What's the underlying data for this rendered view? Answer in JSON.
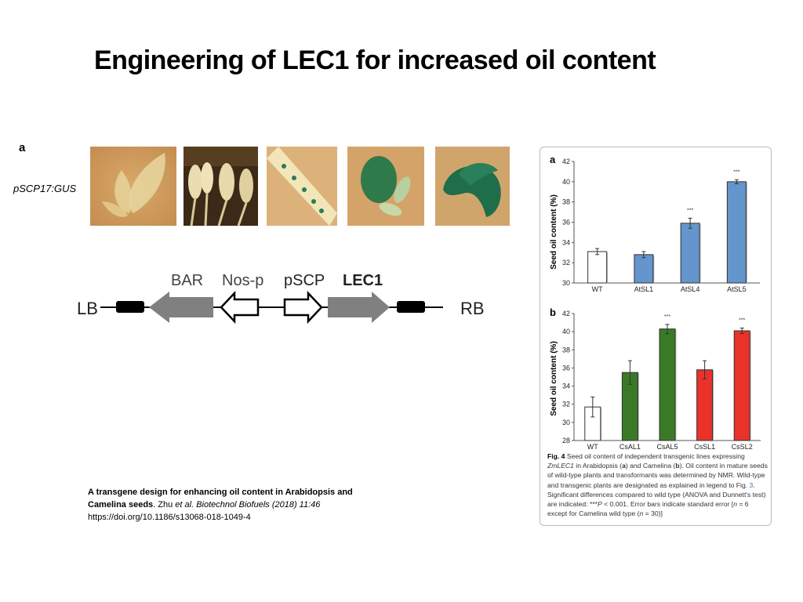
{
  "slide": {
    "title": "Engineering of LEC1 for increased oil content"
  },
  "left_figure": {
    "panel_label": "a",
    "row_label": "pSCP17:GUS",
    "photos": [
      "leaf",
      "flowers",
      "silique",
      "seedling",
      "embryo"
    ],
    "construct": {
      "left_border": "LB",
      "right_border": "RB",
      "elements": [
        "BAR",
        "Nos-p",
        "pSCP",
        "LEC1"
      ]
    }
  },
  "citation": {
    "title_bold": "A transgene design for enhancing oil content in Arabidopsis and Camelina seeds",
    "authors": "Zhu ",
    "et_al": "et al.",
    "journal": "Biotechnol Biofuels (2018) 11:46",
    "doi": "https://doi.org/10.1186/s13068-018-1049-4"
  },
  "chart_data": [
    {
      "type": "bar",
      "panel": "a",
      "ylabel": "Seed oil content (%)",
      "ylim": [
        30,
        42
      ],
      "yticks": [
        30,
        32,
        34,
        36,
        38,
        40,
        42
      ],
      "categories": [
        "WT",
        "AtSL1",
        "AtSL4",
        "AtSL5"
      ],
      "values": [
        33.1,
        32.8,
        35.9,
        40.0
      ],
      "errors": [
        0.3,
        0.3,
        0.5,
        0.2
      ],
      "colors": [
        "#ffffff",
        "#6495cc",
        "#6495cc",
        "#6495cc"
      ],
      "significance": [
        "",
        "",
        "***",
        "***"
      ]
    },
    {
      "type": "bar",
      "panel": "b",
      "ylabel": "Seed oil content (%)",
      "ylim": [
        28,
        42
      ],
      "yticks": [
        28,
        30,
        32,
        34,
        36,
        38,
        40,
        42
      ],
      "categories": [
        "WT",
        "CsAL1",
        "CsAL5",
        "CsSL1",
        "CsSL2"
      ],
      "values": [
        31.7,
        35.5,
        40.3,
        35.8,
        40.1
      ],
      "errors": [
        1.1,
        1.3,
        0.5,
        1.0,
        0.3
      ],
      "colors": [
        "#ffffff",
        "#3a7a26",
        "#3a7a26",
        "#e8322a",
        "#e8322a"
      ],
      "significance": [
        "",
        "",
        "***",
        "",
        "***"
      ]
    }
  ],
  "caption": {
    "fig": "Fig. 4",
    "t1": " Seed oil content of independent transgenic lines expressing ",
    "gene": "ZmLEC1",
    "t2": " in Arabidopsis (",
    "a": "a",
    "t3": ") and Camelina (",
    "b": "b",
    "t4": "). Oil content in mature seeds of wild-type plants and transformants was determined by NMR. Wild-type and transgenic plants are designated as explained in legend to Fig. ",
    "ref": "3",
    "t5": ". Significant differences compared to wild type (ANOVA and Dunnett's test) are indicated: ***",
    "p": "P",
    "t6": " < 0.001. Error bars indicate standard error [",
    "n1": "n",
    "t7": " = 6 except for Camelina wild type (",
    "n2": "n",
    "t8": " = 30)]"
  }
}
